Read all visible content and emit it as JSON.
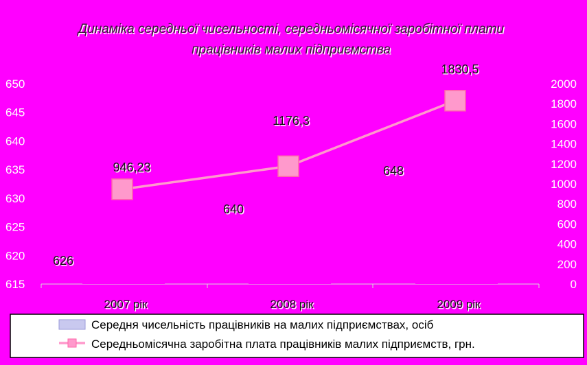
{
  "chart_data": {
    "type": "bar",
    "title": "Динаміка середньої чисельності, середньомісячної заробітної плати працівників малих підприємства",
    "title_lines": [
      "Динаміка середньої чисельності, середньомісячної заробітної плати",
      "працівників малих підприємства"
    ],
    "categories": [
      "2007 рік",
      "2008 рік",
      "2009 рік"
    ],
    "series": [
      {
        "name": "Середня чисельність працівників на малих підприємствах, осіб",
        "type": "bar",
        "axis": "left",
        "values": [
          626,
          640,
          648
        ],
        "labels": [
          "626",
          "640",
          "648"
        ]
      },
      {
        "name": "Середньомісячна заробітна плата працівників малих підприємств, грн.",
        "type": "line",
        "axis": "right",
        "values": [
          946.23,
          1176.3,
          1830.5
        ],
        "labels": [
          "946,23",
          "1176,3",
          "1830,5"
        ]
      }
    ],
    "y_left": {
      "ylim": [
        615,
        650
      ],
      "ticks": [
        "615",
        "620",
        "625",
        "630",
        "635",
        "640",
        "645",
        "650"
      ]
    },
    "y_right": {
      "ylim": [
        0,
        2000
      ],
      "ticks": [
        "0",
        "200",
        "400",
        "600",
        "800",
        "1000",
        "1200",
        "1400",
        "1600",
        "1800",
        "2000"
      ]
    },
    "grid": false,
    "legend_position": "bottom",
    "colors": {
      "background": "#ff00ff",
      "bar": "#ff00ff",
      "line": "#ff99cc",
      "marker_fill": "#ff99cc",
      "marker_stroke": "#ff66aa",
      "tick_text": "#ffffff",
      "legend_bg": "#ffffff"
    }
  }
}
